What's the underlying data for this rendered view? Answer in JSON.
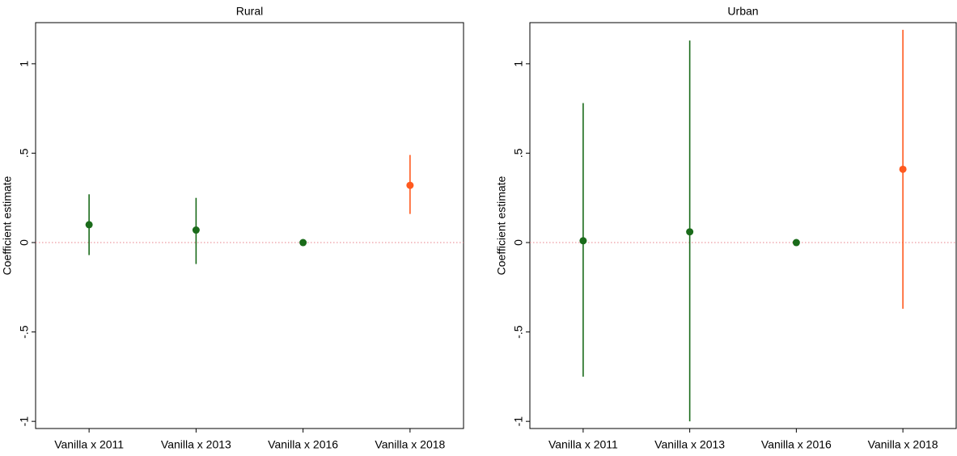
{
  "chart_data": [
    {
      "type": "coefplot",
      "title": "Rural",
      "y_label": "Coefficient estimate",
      "categories": [
        "Vanilla x 2011",
        "Vanilla x 2013",
        "Vanilla x 2016",
        "Vanilla x 2018"
      ],
      "values": [
        0.1,
        0.07,
        0,
        0.32
      ],
      "lower": [
        -0.07,
        -0.12,
        0,
        0.16
      ],
      "upper": [
        0.27,
        0.25,
        0,
        0.49
      ],
      "colors": [
        "#1a6b1a",
        "#1a6b1a",
        "#1a6b1a",
        "#ff5a1f"
      ],
      "reference_line": 0,
      "reference_color": "#e8808a",
      "ylim": [
        -1.04,
        1.23
      ],
      "yticks": [
        -1,
        {
          "value": -0.5,
          "label": "-.5"
        },
        0,
        {
          "value": 0.5,
          "label": ".5"
        },
        1
      ]
    },
    {
      "type": "coefplot",
      "title": "Urban",
      "y_label": "Coefficient estimate",
      "categories": [
        "Vanilla x 2011",
        "Vanilla x 2013",
        "Vanilla x 2016",
        "Vanilla x 2018"
      ],
      "values": [
        0.01,
        0.06,
        0,
        0.41
      ],
      "lower": [
        -0.75,
        -1.0,
        0,
        -0.37
      ],
      "upper": [
        0.78,
        1.13,
        0,
        1.19
      ],
      "colors": [
        "#1a6b1a",
        "#1a6b1a",
        "#1a6b1a",
        "#ff5a1f"
      ],
      "reference_line": 0,
      "reference_color": "#e8808a",
      "ylim": [
        -1.04,
        1.23
      ],
      "yticks": [
        -1,
        {
          "value": -0.5,
          "label": "-.5"
        },
        0,
        {
          "value": 0.5,
          "label": ".5"
        },
        1
      ]
    }
  ]
}
